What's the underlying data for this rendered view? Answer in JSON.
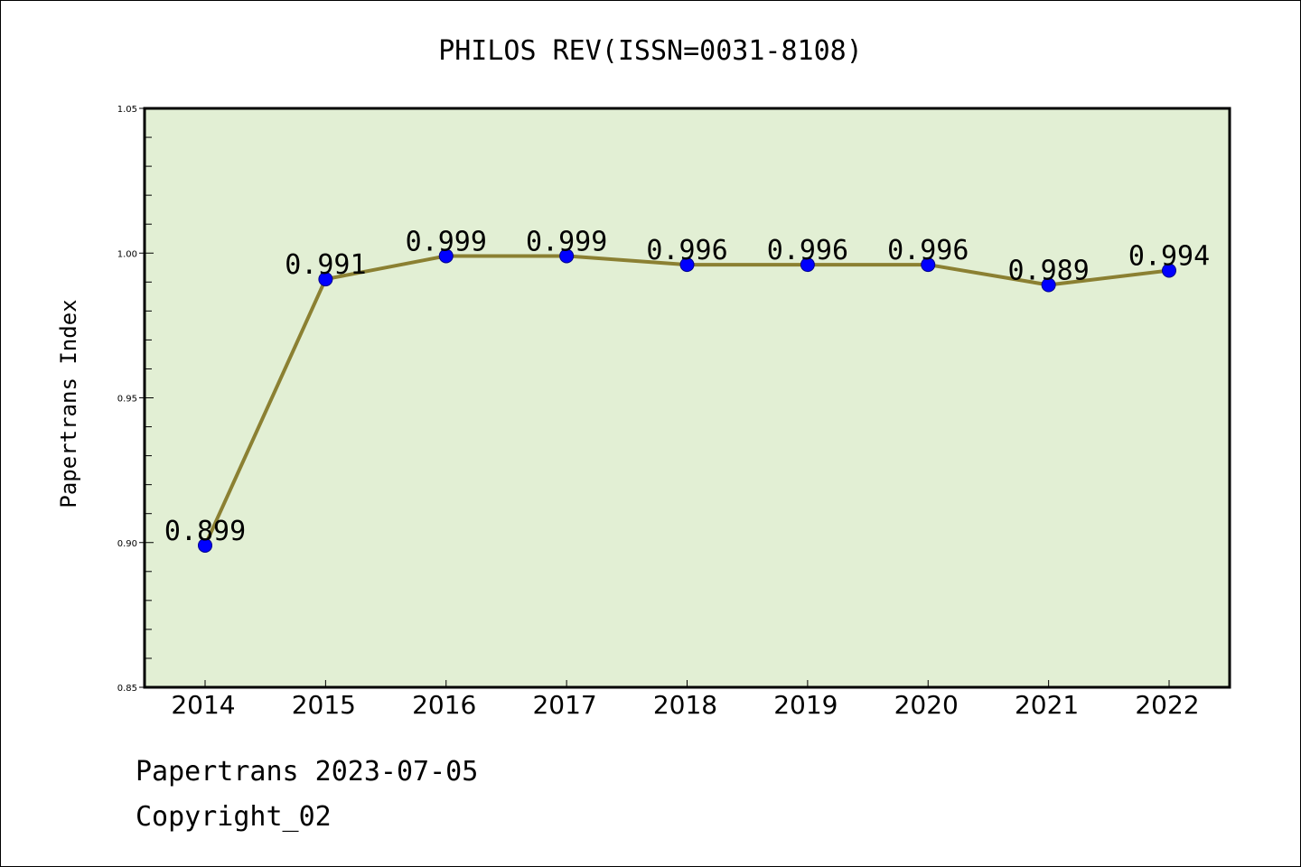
{
  "chart_data": {
    "type": "line",
    "title": "PHILOS REV(ISSN=0031-8108)",
    "ylabel": "Papertrans Index",
    "xlabel": "",
    "ylim": [
      0.85,
      1.05
    ],
    "y_ticks": [
      "0.85",
      "0.90",
      "0.95",
      "1.00",
      "1.05"
    ],
    "categories": [
      "2014",
      "2015",
      "2016",
      "2017",
      "2018",
      "2019",
      "2020",
      "2021",
      "2022"
    ],
    "values": [
      0.899,
      0.991,
      0.999,
      0.999,
      0.996,
      0.996,
      0.996,
      0.989,
      0.994
    ],
    "value_labels": [
      "0.899",
      "0.991",
      "0.999",
      "0.999",
      "0.996",
      "0.996",
      "0.996",
      "0.989",
      "0.994"
    ],
    "grid": false,
    "line_color": "#8b8032",
    "marker_color": "#0000ff",
    "plot_background": "#e2efd4"
  },
  "footer": {
    "line1": "Papertrans 2023-07-05",
    "line2": "Copyright_02"
  }
}
